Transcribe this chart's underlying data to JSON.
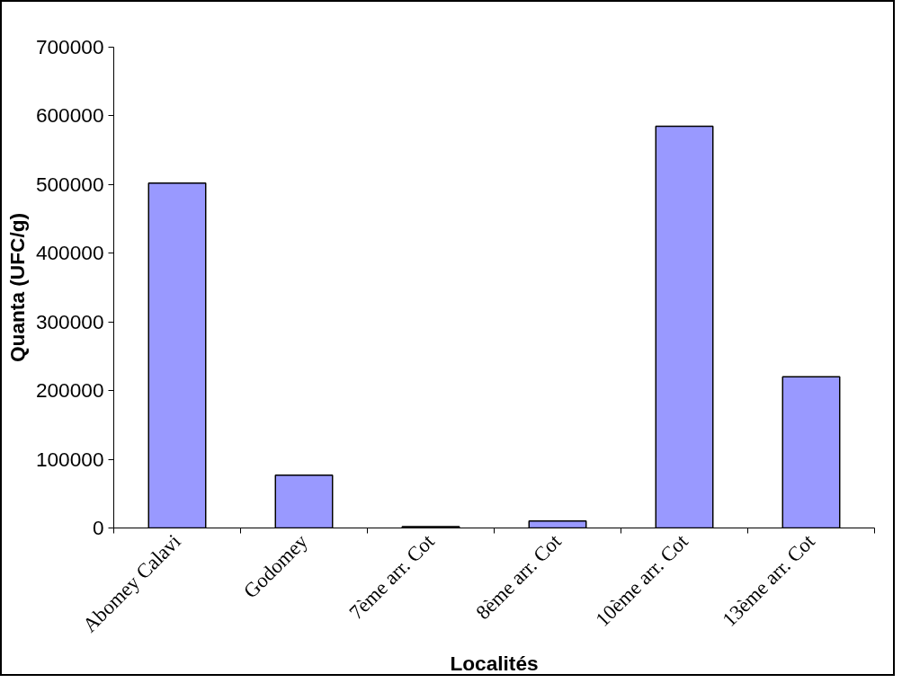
{
  "chart_data": {
    "type": "bar",
    "xlabel": "Localités",
    "ylabel": "Quanta (UFC/g)",
    "categories": [
      "Abomey Calavi",
      "Godomey",
      "7ème arr. Cot",
      "8ème arr. Cot",
      "10ème arr. Cot",
      "13ème arr. Cot"
    ],
    "values": [
      502000,
      77000,
      2000,
      10000,
      585000,
      220000
    ],
    "color": "#9999ff",
    "ylim": [
      0,
      700000
    ],
    "yticks": [
      0,
      100000,
      200000,
      300000,
      400000,
      500000,
      600000,
      700000
    ],
    "grid": false
  }
}
